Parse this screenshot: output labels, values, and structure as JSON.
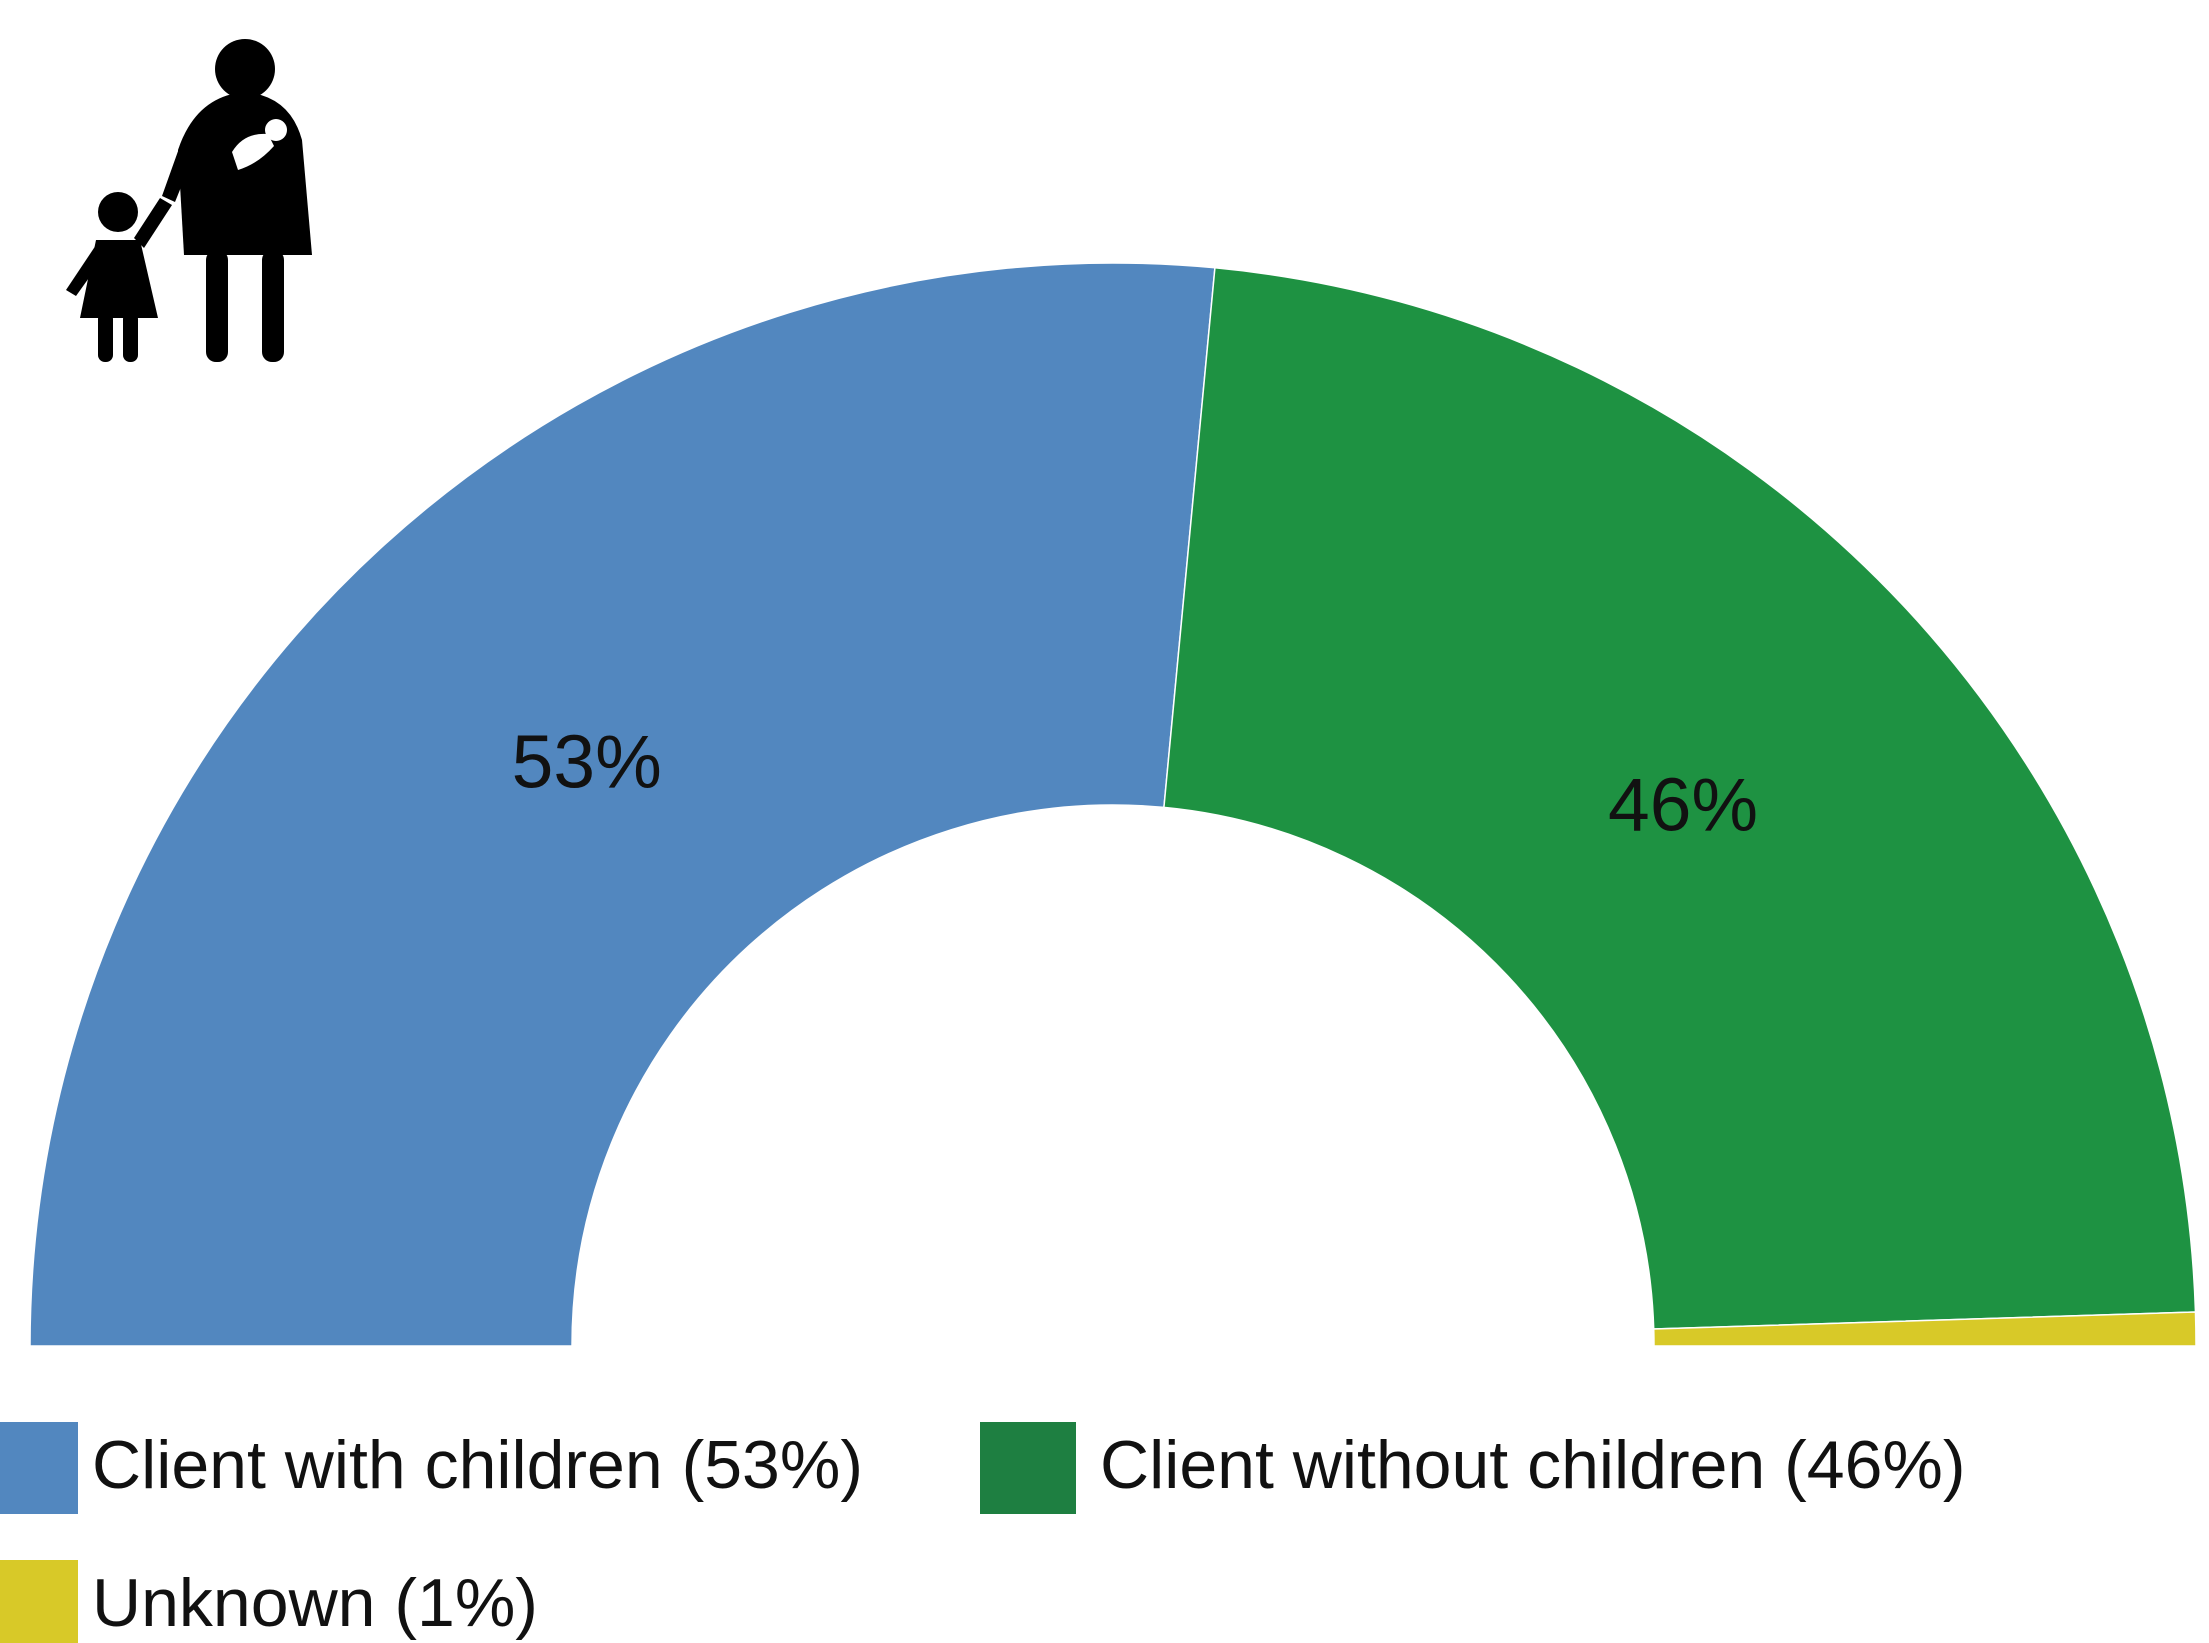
{
  "icon": "parent-with-children-icon",
  "chart_data": {
    "type": "pie",
    "variant": "half-donut",
    "title": "",
    "categories": [
      "Client with children",
      "Client without children",
      "Unknown"
    ],
    "values": [
      53,
      46,
      1
    ],
    "unit": "%",
    "data_labels": [
      "53%",
      "46%",
      ""
    ],
    "colors": [
      "#5287BF",
      "#1E9242",
      "#D8C928"
    ],
    "legend": {
      "placement": "bottom",
      "entries": [
        {
          "label": "Client with children (53%)",
          "color": "#5287BF"
        },
        {
          "label": "Client without children (46%)",
          "color": "#1E7F41"
        },
        {
          "label": "Unknown (1%)",
          "color": "#D8C928"
        }
      ]
    }
  }
}
